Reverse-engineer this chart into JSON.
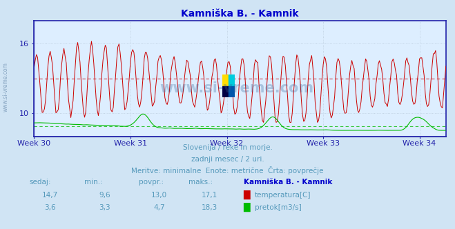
{
  "title": "Kamniška B. - Kamnik",
  "title_color": "#0000cc",
  "bg_color": "#d0e4f4",
  "plot_bg_color": "#ddeeff",
  "grid_color": "#bbccdd",
  "axis_color": "#2222aa",
  "weeks": [
    "Week 30",
    "Week 31",
    "Week 32",
    "Week 33",
    "Week 34"
  ],
  "week_x": [
    0,
    84,
    168,
    252,
    336
  ],
  "temp_color": "#cc0000",
  "flow_color": "#00bb00",
  "temp_avg": 13.0,
  "flow_avg": 4.7,
  "temp_min": 9.6,
  "temp_max": 17.1,
  "flow_min": 3.3,
  "flow_max": 18.3,
  "temp_sedaj": 14.7,
  "flow_sedaj": 3.6,
  "watermark": "www.si-vreme.com",
  "left_watermark": "www.si-vreme.com",
  "subtitle1": "Slovenija / reke in morje.",
  "subtitle2": "zadnji mesec / 2 uri.",
  "subtitle3": "Meritve: minimalne  Enote: metrične  Črta: povprečje",
  "subtitle_color": "#5599bb",
  "table_header": [
    "sedaj:",
    "min.:",
    "povpr.:",
    "maks.:",
    "Kamniška B. - Kamnik"
  ],
  "table_data_color": "#5599bb",
  "table_title_color": "#0000cc",
  "n_points": 360,
  "temp_ylim": [
    8.0,
    18.0
  ],
  "flow_ylim": [
    0.0,
    55.0
  ],
  "yticks": [
    10,
    16
  ]
}
